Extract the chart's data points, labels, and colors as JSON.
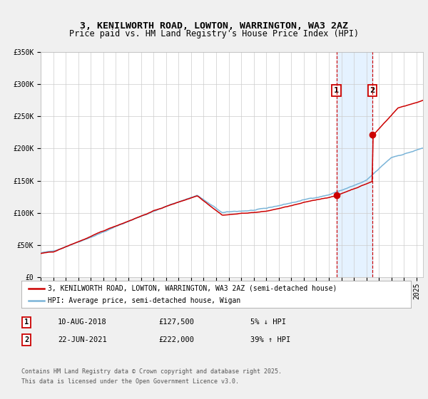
{
  "title_line1": "3, KENILWORTH ROAD, LOWTON, WARRINGTON, WA3 2AZ",
  "title_line2": "Price paid vs. HM Land Registry's House Price Index (HPI)",
  "ylim": [
    0,
    350000
  ],
  "yticks": [
    0,
    50000,
    100000,
    150000,
    200000,
    250000,
    300000,
    350000
  ],
  "ytick_labels": [
    "£0",
    "£50K",
    "£100K",
    "£150K",
    "£200K",
    "£250K",
    "£300K",
    "£350K"
  ],
  "xlim_start": 1995.0,
  "xlim_end": 2025.5,
  "xticks": [
    1995,
    1996,
    1997,
    1998,
    1999,
    2000,
    2001,
    2002,
    2003,
    2004,
    2005,
    2006,
    2007,
    2008,
    2009,
    2010,
    2011,
    2012,
    2013,
    2014,
    2015,
    2016,
    2017,
    2018,
    2019,
    2020,
    2021,
    2022,
    2023,
    2024,
    2025
  ],
  "hpi_color": "#7ab4d8",
  "price_color": "#cc0000",
  "marker_color": "#cc0000",
  "vline_color": "#cc0000",
  "shade_color": "#ddeeff",
  "grid_color": "#cccccc",
  "background_color": "#f0f0f0",
  "plot_bg_color": "#ffffff",
  "event1_x": 2018.608,
  "event1_y": 127500,
  "event1_label": "1",
  "event1_date": "10-AUG-2018",
  "event1_price": "£127,500",
  "event1_hpi": "5% ↓ HPI",
  "event2_x": 2021.472,
  "event2_y": 222000,
  "event2_label": "2",
  "event2_date": "22-JUN-2021",
  "event2_price": "£222,000",
  "event2_hpi": "39% ↑ HPI",
  "legend_line1": "3, KENILWORTH ROAD, LOWTON, WARRINGTON, WA3 2AZ (semi-detached house)",
  "legend_line2": "HPI: Average price, semi-detached house, Wigan",
  "footer_line1": "Contains HM Land Registry data © Crown copyright and database right 2025.",
  "footer_line2": "This data is licensed under the Open Government Licence v3.0.",
  "title_fontsize": 9.5,
  "subtitle_fontsize": 8.5,
  "tick_fontsize": 7,
  "legend_fontsize": 7,
  "table_fontsize": 7.5,
  "footer_fontsize": 6
}
